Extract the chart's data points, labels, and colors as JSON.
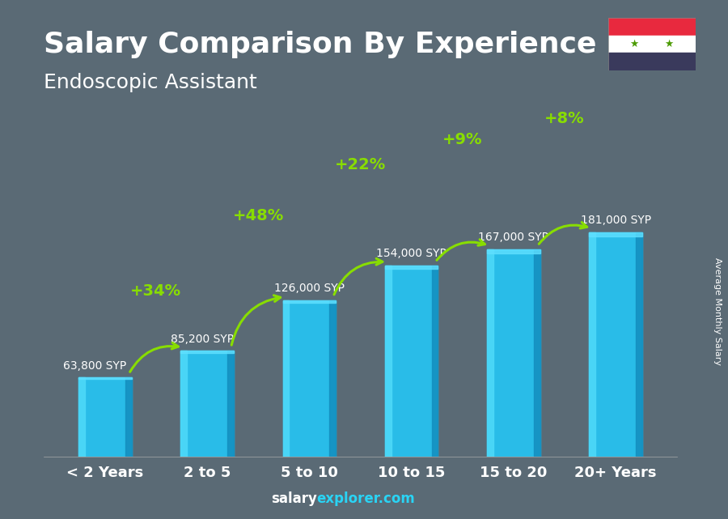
{
  "categories": [
    "< 2 Years",
    "2 to 5",
    "5 to 10",
    "10 to 15",
    "15 to 20",
    "20+ Years"
  ],
  "values": [
    63800,
    85200,
    126000,
    154000,
    167000,
    181000
  ],
  "labels": [
    "63,800 SYP",
    "85,200 SYP",
    "126,000 SYP",
    "154,000 SYP",
    "167,000 SYP",
    "181,000 SYP"
  ],
  "pct_changes": [
    "+34%",
    "+48%",
    "+22%",
    "+9%",
    "+8%"
  ],
  "title": "Salary Comparison By Experience",
  "subtitle": "Endoscopic Assistant",
  "ylabel_right": "Average Monthly Salary",
  "bar_color": "#29bce8",
  "bar_color_left": "#4dd8f8",
  "bar_color_right": "#1490c0",
  "bar_color_top": "#60e0ff",
  "arrow_color": "#88dd00",
  "pct_color": "#88dd00",
  "label_color": "#ffffff",
  "bg_color": "#5a6a75",
  "footer_salary": "#ffffff",
  "footer_explorer": "#29d4f5",
  "ylim": [
    0,
    230000
  ],
  "title_fontsize": 26,
  "subtitle_fontsize": 18,
  "cat_fontsize": 13,
  "label_fontsize": 10,
  "pct_fontsize": 14
}
